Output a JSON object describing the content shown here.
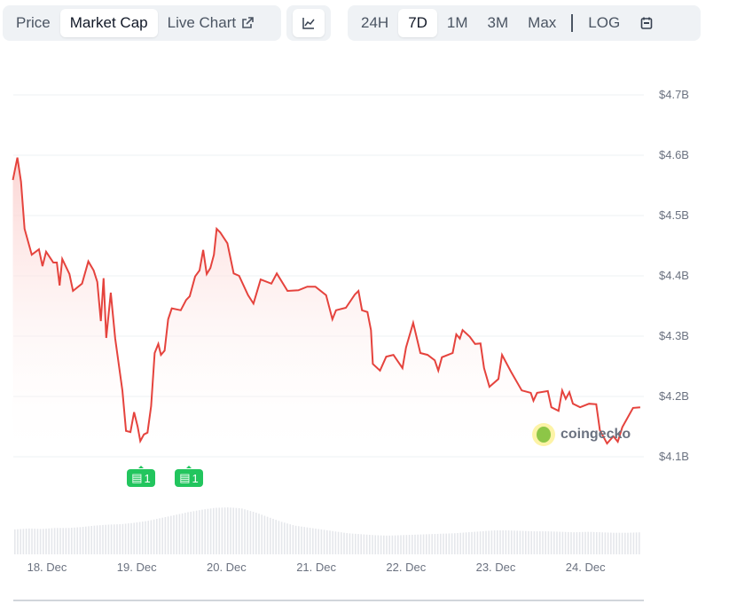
{
  "toolbar": {
    "metric_tabs": [
      {
        "label": "Price"
      },
      {
        "label": "Market Cap",
        "active": true
      },
      {
        "label": "Live Chart",
        "icon": "external-link-icon"
      }
    ],
    "chart_type_icon": "line-chart-icon",
    "range_tabs": [
      {
        "label": "24H"
      },
      {
        "label": "7D",
        "active": true
      },
      {
        "label": "1M"
      },
      {
        "label": "3M"
      },
      {
        "label": "Max"
      }
    ],
    "log_label": "LOG",
    "calendar_icon": "calendar-icon"
  },
  "watermark": "coingecko",
  "news_badges": [
    {
      "count": "1",
      "day": 19.04
    },
    {
      "count": "1",
      "day": 19.57
    }
  ],
  "colors": {
    "line": "#e5433d",
    "fill": "#fde2e1",
    "news": "#22c55e",
    "grid": "#e5e7eb"
  },
  "chart_data": {
    "type": "area",
    "title": "",
    "ylabel": "",
    "xlabel": "",
    "ylim": [
      4.05,
      4.75
    ],
    "xlim": [
      17.62,
      24.61
    ],
    "y_ticks": [
      "$4.1B",
      "$4.2B",
      "$4.3B",
      "$4.4B",
      "$4.5B",
      "$4.6B",
      "$4.7B"
    ],
    "y_tick_values": [
      4.1,
      4.2,
      4.3,
      4.4,
      4.5,
      4.6,
      4.7
    ],
    "x_ticks": [
      "18. Dec",
      "19. Dec",
      "20. Dec",
      "21. Dec",
      "22. Dec",
      "23. Dec",
      "24. Dec"
    ],
    "x_tick_values": [
      18,
      19,
      20,
      21,
      22,
      23,
      24
    ],
    "grid": true,
    "series": [
      {
        "unit": "USD billions, x = day of December",
        "points": [
          [
            17.62,
            4.559
          ],
          [
            17.67,
            4.596
          ],
          [
            17.71,
            4.556
          ],
          [
            17.75,
            4.478
          ],
          [
            17.83,
            4.435
          ],
          [
            17.91,
            4.444
          ],
          [
            17.95,
            4.416
          ],
          [
            17.99,
            4.44
          ],
          [
            18.07,
            4.422
          ],
          [
            18.11,
            4.422
          ],
          [
            18.14,
            4.384
          ],
          [
            18.17,
            4.428
          ],
          [
            18.25,
            4.403
          ],
          [
            18.29,
            4.375
          ],
          [
            18.39,
            4.387
          ],
          [
            18.46,
            4.424
          ],
          [
            18.52,
            4.409
          ],
          [
            18.56,
            4.39
          ],
          [
            18.6,
            4.325
          ],
          [
            18.63,
            4.396
          ],
          [
            18.66,
            4.297
          ],
          [
            18.71,
            4.372
          ],
          [
            18.76,
            4.296
          ],
          [
            18.84,
            4.21
          ],
          [
            18.88,
            4.143
          ],
          [
            18.93,
            4.141
          ],
          [
            18.97,
            4.174
          ],
          [
            19.01,
            4.15
          ],
          [
            19.04,
            4.126
          ],
          [
            19.08,
            4.137
          ],
          [
            19.12,
            4.14
          ],
          [
            19.16,
            4.184
          ],
          [
            19.2,
            4.272
          ],
          [
            19.24,
            4.287
          ],
          [
            19.27,
            4.269
          ],
          [
            19.31,
            4.276
          ],
          [
            19.35,
            4.328
          ],
          [
            19.39,
            4.346
          ],
          [
            19.49,
            4.343
          ],
          [
            19.55,
            4.36
          ],
          [
            19.59,
            4.366
          ],
          [
            19.65,
            4.399
          ],
          [
            19.7,
            4.409
          ],
          [
            19.74,
            4.443
          ],
          [
            19.78,
            4.403
          ],
          [
            19.82,
            4.413
          ],
          [
            19.86,
            4.435
          ],
          [
            19.89,
            4.478
          ],
          [
            19.93,
            4.472
          ],
          [
            20.01,
            4.454
          ],
          [
            20.08,
            4.404
          ],
          [
            20.14,
            4.4
          ],
          [
            20.24,
            4.368
          ],
          [
            20.3,
            4.354
          ],
          [
            20.38,
            4.394
          ],
          [
            20.5,
            4.387
          ],
          [
            20.56,
            4.404
          ],
          [
            20.68,
            4.375
          ],
          [
            20.8,
            4.376
          ],
          [
            20.9,
            4.382
          ],
          [
            20.99,
            4.382
          ],
          [
            21.11,
            4.368
          ],
          [
            21.18,
            4.328
          ],
          [
            21.22,
            4.343
          ],
          [
            21.33,
            4.347
          ],
          [
            21.43,
            4.369
          ],
          [
            21.47,
            4.375
          ],
          [
            21.51,
            4.343
          ],
          [
            21.57,
            4.34
          ],
          [
            21.61,
            4.31
          ],
          [
            21.63,
            4.254
          ],
          [
            21.71,
            4.243
          ],
          [
            21.78,
            4.266
          ],
          [
            21.86,
            4.269
          ],
          [
            21.96,
            4.247
          ],
          [
            22.0,
            4.281
          ],
          [
            22.08,
            4.322
          ],
          [
            22.16,
            4.272
          ],
          [
            22.24,
            4.269
          ],
          [
            22.32,
            4.26
          ],
          [
            22.36,
            4.243
          ],
          [
            22.4,
            4.265
          ],
          [
            22.52,
            4.272
          ],
          [
            22.56,
            4.303
          ],
          [
            22.6,
            4.296
          ],
          [
            22.63,
            4.31
          ],
          [
            22.71,
            4.299
          ],
          [
            22.77,
            4.287
          ],
          [
            22.83,
            4.288
          ],
          [
            22.87,
            4.247
          ],
          [
            22.93,
            4.216
          ],
          [
            23.03,
            4.229
          ],
          [
            23.07,
            4.269
          ],
          [
            23.17,
            4.241
          ],
          [
            23.29,
            4.21
          ],
          [
            23.39,
            4.206
          ],
          [
            23.42,
            4.193
          ],
          [
            23.46,
            4.206
          ],
          [
            23.58,
            4.209
          ],
          [
            23.62,
            4.182
          ],
          [
            23.7,
            4.176
          ],
          [
            23.74,
            4.21
          ],
          [
            23.78,
            4.196
          ],
          [
            23.82,
            4.207
          ],
          [
            23.86,
            4.188
          ],
          [
            23.94,
            4.182
          ],
          [
            24.04,
            4.188
          ],
          [
            24.12,
            4.187
          ],
          [
            24.16,
            4.144
          ],
          [
            24.24,
            4.122
          ],
          [
            24.31,
            4.134
          ],
          [
            24.36,
            4.125
          ],
          [
            24.41,
            4.149
          ],
          [
            24.53,
            4.181
          ],
          [
            24.61,
            4.182
          ]
        ]
      }
    ],
    "volume_relative": [
      0.52,
      0.54,
      0.53,
      0.55,
      0.55,
      0.57,
      0.6,
      0.62,
      0.63,
      0.66,
      0.7,
      0.76,
      0.82,
      0.88,
      0.93,
      0.97,
      0.98,
      0.96,
      0.88,
      0.78,
      0.68,
      0.6,
      0.56,
      0.52,
      0.48,
      0.44,
      0.42,
      0.4,
      0.39,
      0.4,
      0.41,
      0.42,
      0.43,
      0.44,
      0.46,
      0.48,
      0.5,
      0.5,
      0.49,
      0.48,
      0.48,
      0.47,
      0.46,
      0.47,
      0.46,
      0.45,
      0.45,
      0.46
    ]
  }
}
